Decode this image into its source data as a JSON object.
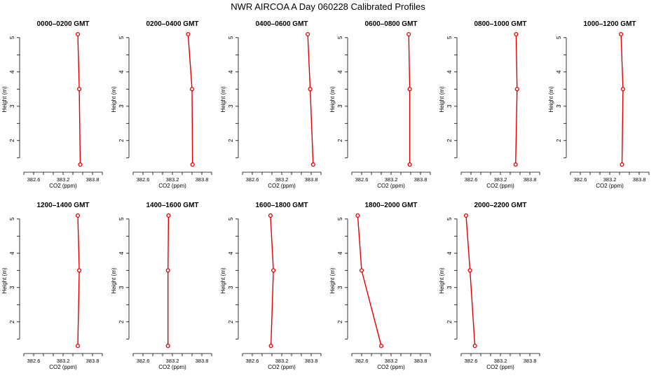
{
  "figure": {
    "title": "NWR AIRCOA A  Day 060228  Calibrated Profiles"
  },
  "style": {
    "line_color": "#e00000",
    "point_color": "#e00000",
    "axis_color": "#000000"
  },
  "chart_data": [
    {
      "type": "line",
      "title": "0000–0200 GMT",
      "xlabel": "CO2 (ppm)",
      "ylabel": "Height (m)",
      "xlim": [
        382.4,
        384.0
      ],
      "ylim": [
        1.2,
        5.2
      ],
      "xticks": [
        "382.6",
        "383.2",
        "383.8"
      ],
      "yticks": [
        "2",
        "3",
        "4",
        "5"
      ],
      "x": [
        383.55,
        383.53,
        383.5
      ],
      "y": [
        1.3,
        3.5,
        5.1
      ]
    },
    {
      "type": "line",
      "title": "0200–0400 GMT",
      "xlabel": "CO2 (ppm)",
      "ylabel": "Height (m)",
      "xlim": [
        382.4,
        384.0
      ],
      "ylim": [
        1.2,
        5.2
      ],
      "xticks": [
        "382.6",
        "383.2",
        "383.8"
      ],
      "yticks": [
        "2",
        "3",
        "4",
        "5"
      ],
      "x": [
        383.61,
        383.6,
        383.52
      ],
      "y": [
        1.3,
        3.5,
        5.1
      ]
    },
    {
      "type": "line",
      "title": "0400–0600 GMT",
      "xlabel": "CO2 (ppm)",
      "ylabel": "Height (m)",
      "xlim": [
        382.4,
        384.0
      ],
      "ylim": [
        1.2,
        5.2
      ],
      "xticks": [
        "382.6",
        "383.2",
        "383.8"
      ],
      "yticks": [
        "2",
        "3",
        "4",
        "5"
      ],
      "x": [
        383.84,
        383.78,
        383.73
      ],
      "y": [
        1.3,
        3.5,
        5.1
      ]
    },
    {
      "type": "line",
      "title": "0600–0800 GMT",
      "xlabel": "CO2 (ppm)",
      "ylabel": "Height (m)",
      "xlim": [
        382.4,
        384.0
      ],
      "ylim": [
        1.2,
        5.2
      ],
      "xticks": [
        "382.6",
        "383.2",
        "383.8"
      ],
      "yticks": [
        "2",
        "3",
        "4",
        "5"
      ],
      "x": [
        383.58,
        383.58,
        383.56
      ],
      "y": [
        1.3,
        3.5,
        5.1
      ]
    },
    {
      "type": "line",
      "title": "0800–1000 GMT",
      "xlabel": "CO2 (ppm)",
      "ylabel": "Height (m)",
      "xlim": [
        382.4,
        384.0
      ],
      "ylim": [
        1.2,
        5.2
      ],
      "xticks": [
        "382.6",
        "383.2",
        "383.8"
      ],
      "yticks": [
        "2",
        "3",
        "4",
        "5"
      ],
      "x": [
        383.51,
        383.54,
        383.52
      ],
      "y": [
        1.3,
        3.5,
        5.1
      ]
    },
    {
      "type": "line",
      "title": "1000–1200 GMT",
      "xlabel": "CO2 (ppm)",
      "ylabel": "Height (m)",
      "xlim": [
        382.4,
        384.0
      ],
      "ylim": [
        1.2,
        5.2
      ],
      "xticks": [
        "382.6",
        "383.2",
        "383.8"
      ],
      "yticks": [
        "2",
        "3",
        "4",
        "5"
      ],
      "x": [
        383.45,
        383.47,
        383.43
      ],
      "y": [
        1.3,
        3.5,
        5.1
      ]
    },
    {
      "type": "line",
      "title": "1200–1400 GMT",
      "xlabel": "CO2 (ppm)",
      "ylabel": "Height (m)",
      "xlim": [
        382.4,
        384.0
      ],
      "ylim": [
        1.2,
        5.2
      ],
      "xticks": [
        "382.6",
        "383.2",
        "383.8"
      ],
      "yticks": [
        "2",
        "3",
        "4",
        "5"
      ],
      "x": [
        383.5,
        383.53,
        383.5
      ],
      "y": [
        1.3,
        3.5,
        5.1
      ]
    },
    {
      "type": "line",
      "title": "1400–1600 GMT",
      "xlabel": "CO2 (ppm)",
      "ylabel": "Height (m)",
      "xlim": [
        382.4,
        384.0
      ],
      "ylim": [
        1.2,
        5.2
      ],
      "xticks": [
        "382.6",
        "383.2",
        "383.8"
      ],
      "yticks": [
        "2",
        "3",
        "4",
        "5"
      ],
      "x": [
        383.11,
        383.11,
        383.12
      ],
      "y": [
        1.3,
        3.5,
        5.1
      ]
    },
    {
      "type": "line",
      "title": "1600–1800 GMT",
      "xlabel": "CO2 (ppm)",
      "ylabel": "Height (m)",
      "xlim": [
        382.4,
        384.0
      ],
      "ylim": [
        1.2,
        5.2
      ],
      "xticks": [
        "382.6",
        "383.2",
        "383.8"
      ],
      "yticks": [
        "2",
        "3",
        "4",
        "5"
      ],
      "x": [
        382.98,
        383.03,
        382.97
      ],
      "y": [
        1.3,
        3.5,
        5.1
      ]
    },
    {
      "type": "line",
      "title": "1800–2000 GMT",
      "xlabel": "CO2 (ppm)",
      "ylabel": "Height (m)",
      "xlim": [
        382.4,
        384.0
      ],
      "ylim": [
        1.2,
        5.2
      ],
      "xticks": [
        "382.6",
        "383.2",
        "383.8"
      ],
      "yticks": [
        "2",
        "3",
        "4",
        "5"
      ],
      "x": [
        383.0,
        382.6,
        382.52
      ],
      "y": [
        1.3,
        3.5,
        5.1
      ]
    },
    {
      "type": "line",
      "title": "2000–2200 GMT",
      "xlabel": "CO2 (ppm)",
      "ylabel": "Height (m)",
      "xlim": [
        382.4,
        384.0
      ],
      "ylim": [
        1.2,
        5.2
      ],
      "xticks": [
        "382.6",
        "383.2",
        "383.8"
      ],
      "yticks": [
        "2",
        "3",
        "4",
        "5"
      ],
      "x": [
        382.68,
        382.58,
        382.5
      ],
      "y": [
        1.3,
        3.5,
        5.1
      ]
    }
  ]
}
